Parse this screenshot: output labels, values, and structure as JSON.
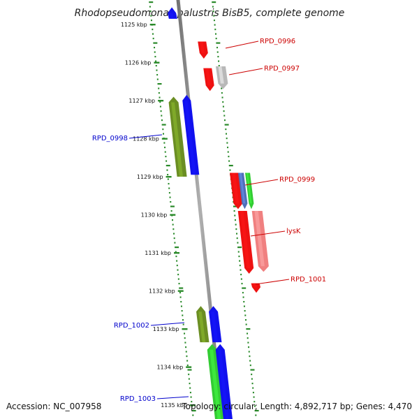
{
  "title": "Rhodopseudomonas palustris BisB5, complete genome",
  "accession": "Accession: NC_007958",
  "topology": "Topology: circular; Length: 4,892,717 bp; Genes: 4,470",
  "colors": {
    "backbone": "#8a8a8a",
    "gc_dots": "#2a8a2a",
    "forward_label": "#cc0000",
    "reverse_label": "#0000cc",
    "red": "#ee1111",
    "blue": "#1111ee",
    "olive": "#6b8e23",
    "green": "#33cc33",
    "grey": "#b8b8b8",
    "pink": "#f08080",
    "steelblue": "#4f6fb8"
  },
  "ticks": [
    {
      "label": "1125 kbp"
    },
    {
      "label": "1126 kbp"
    },
    {
      "label": "1127 kbp"
    },
    {
      "label": "1128 kbp"
    },
    {
      "label": "1129 kbp"
    },
    {
      "label": "1130 kbp"
    },
    {
      "label": "1131 kbp"
    },
    {
      "label": "1132 kbp"
    },
    {
      "label": "1133 kbp"
    },
    {
      "label": "1134 kbp"
    },
    {
      "label": "1135 kbp"
    }
  ],
  "gene_labels": [
    {
      "name": "RPD_0996",
      "strand": "forward"
    },
    {
      "name": "RPD_0997",
      "strand": "forward"
    },
    {
      "name": "RPD_0998",
      "strand": "reverse"
    },
    {
      "name": "RPD_0999",
      "strand": "forward"
    },
    {
      "name": "lysK",
      "strand": "forward"
    },
    {
      "name": "RPD_1001",
      "strand": "forward"
    },
    {
      "name": "RPD_1002",
      "strand": "reverse"
    },
    {
      "name": "RPD_1003",
      "strand": "reverse"
    }
  ],
  "features": [
    {
      "color": "blue",
      "strand": "reverse",
      "kbp_start": 1124.55,
      "kbp_end": 1124.85
    },
    {
      "color": "red",
      "strand": "forward",
      "kbp_start": 1125.45,
      "kbp_end": 1125.9
    },
    {
      "color": "red",
      "strand": "forward",
      "kbp_start": 1126.15,
      "kbp_end": 1126.75
    },
    {
      "color": "grey",
      "strand": "forward",
      "kbp_start": 1126.1,
      "kbp_end": 1126.7
    },
    {
      "color": "olive",
      "strand": "reverse",
      "kbp_start": 1126.9,
      "kbp_end": 1129.0
    },
    {
      "color": "blue",
      "strand": "reverse",
      "kbp_start": 1126.85,
      "kbp_end": 1128.95
    },
    {
      "color": "red",
      "strand": "forward",
      "kbp_start": 1128.9,
      "kbp_end": 1129.85
    },
    {
      "color": "steelblue",
      "strand": "forward",
      "kbp_start": 1128.9,
      "kbp_end": 1129.85
    },
    {
      "color": "green",
      "strand": "forward",
      "kbp_start": 1128.9,
      "kbp_end": 1129.85
    },
    {
      "color": "red",
      "strand": "forward",
      "kbp_start": 1129.9,
      "kbp_end": 1131.55
    },
    {
      "color": "pink",
      "strand": "forward",
      "kbp_start": 1129.9,
      "kbp_end": 1131.5
    },
    {
      "color": "red",
      "strand": "forward",
      "kbp_start": 1131.8,
      "kbp_end": 1132.05
    },
    {
      "color": "olive",
      "strand": "reverse",
      "kbp_start": 1132.4,
      "kbp_end": 1133.35
    },
    {
      "color": "blue",
      "strand": "reverse",
      "kbp_start": 1132.4,
      "kbp_end": 1133.35
    },
    {
      "color": "green",
      "strand": "reverse",
      "kbp_start": 1133.4,
      "kbp_end": 1135.5
    },
    {
      "color": "blue",
      "strand": "reverse",
      "kbp_start": 1133.4,
      "kbp_end": 1135.5
    }
  ]
}
